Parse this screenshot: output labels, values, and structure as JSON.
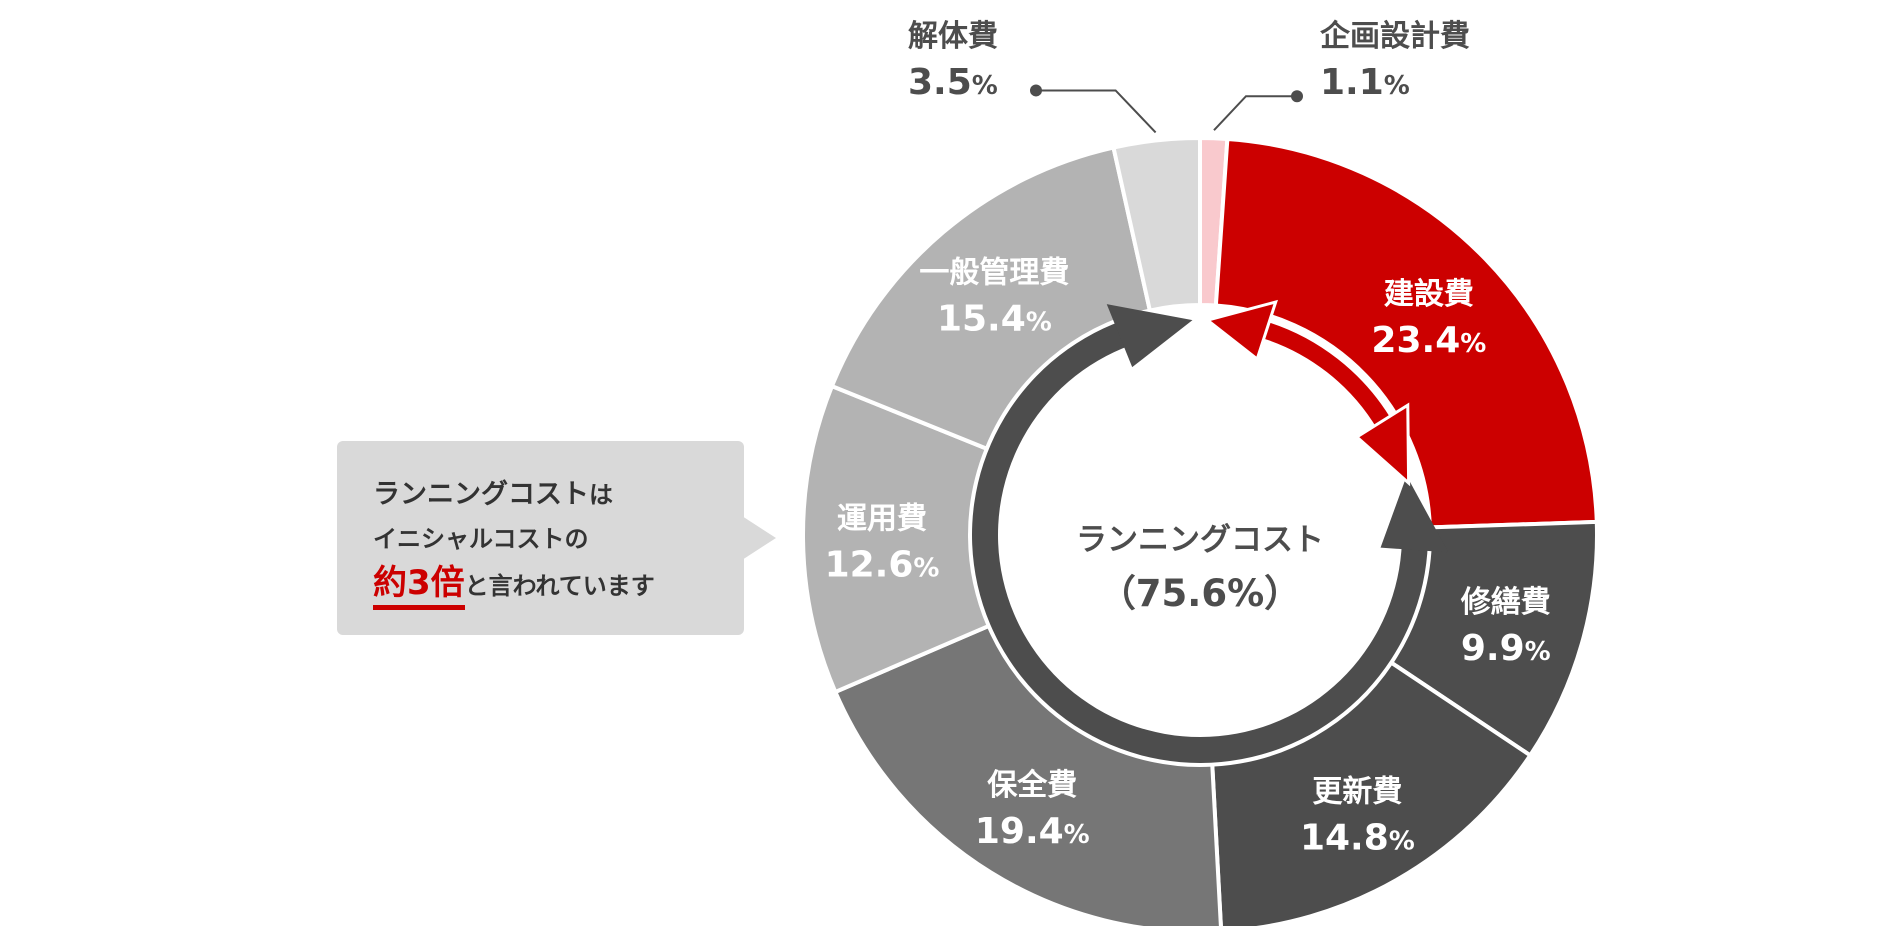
{
  "chart_data": {
    "type": "donut",
    "title": "",
    "center_label": "ランニングコスト",
    "center_value": "（75.6%）",
    "segments": [
      {
        "label": "企画設計費",
        "value": 1.1,
        "display": "1.1",
        "color": "#f9c9cd"
      },
      {
        "label": "建設費",
        "value": 23.4,
        "display": "23.4",
        "color": "#cc0000"
      },
      {
        "label": "修繕費",
        "value": 9.9,
        "display": "9.9",
        "color": "#4d4d4d"
      },
      {
        "label": "更新費",
        "value": 14.8,
        "display": "14.8",
        "color": "#4d4d4d"
      },
      {
        "label": "保全費",
        "value": 19.4,
        "display": "19.4",
        "color": "#767676"
      },
      {
        "label": "運用費",
        "value": 12.6,
        "display": "12.6",
        "color": "#b3b3b3"
      },
      {
        "label": "一般管理費",
        "value": 15.4,
        "display": "15.4",
        "color": "#b3b3b3"
      },
      {
        "label": "解体費",
        "value": 3.5,
        "display": "3.5",
        "color": "#d9d9d9"
      }
    ],
    "percent_unit": "%"
  },
  "colors": {
    "accent": "#cc0000",
    "dark": "#4d4d4d",
    "text": "#333333",
    "callout_bg": "#d9d9d9"
  },
  "callout": {
    "line1_main": "ランニングコスト",
    "line1_suffix": "は",
    "line2": "イニシャルコストの",
    "line3_highlight": "約3倍",
    "line3_rest": "と言われています"
  }
}
